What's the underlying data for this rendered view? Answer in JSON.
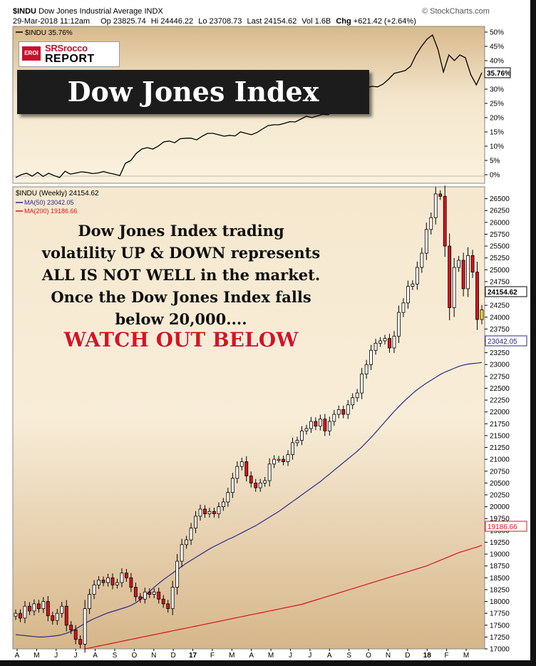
{
  "header": {
    "symbol": "$INDU",
    "name": "Dow Jones Industrial Average",
    "exchange": "INDX",
    "date": "29-Mar-2018 11:12am",
    "op_label": "Op",
    "op": "23825.74",
    "hi_label": "Hi",
    "hi": "24446.22",
    "lo_label": "Lo",
    "lo": "23708.73",
    "last_label": "Last",
    "last": "24154.62",
    "vol_label": "Vol",
    "vol": "1.6B",
    "chg_label": "Chg",
    "chg": "+621.42 (+2.64%)",
    "credit": "© StockCharts.com"
  },
  "logo": {
    "badge": "EROI",
    "line1": "SRSrocco",
    "line2": "REPORT"
  },
  "banner": {
    "title": "Dow Jones Index"
  },
  "annotation": {
    "lines": [
      "Dow Jones Index trading",
      "volatility UP & DOWN represents",
      "ALL IS NOT WELL in the market.",
      "Once the Dow Jones Index falls",
      "below 20,000...."
    ],
    "warning": "WATCH OUT BELOW"
  },
  "colors": {
    "panel_bg": "#f2e3c8",
    "up": "#ffffff",
    "down": "#d9141b",
    "ma50": "#2a2a8a",
    "ma200": "#d9141b",
    "perf_line": "#000000",
    "last_candle": "#f2e13a",
    "frame": "#111111"
  },
  "chart_data": [
    {
      "type": "line",
      "legend": "$INDU 35.76%",
      "last_label": "35.76%",
      "ylim": [
        -3,
        52
      ],
      "yticks": [
        "0%",
        "5%",
        "10%",
        "15%",
        "20%",
        "25%",
        "30%",
        "35%",
        "40%",
        "45%",
        "50%"
      ],
      "ytick_values": [
        0,
        5,
        10,
        15,
        20,
        25,
        30,
        35,
        40,
        45,
        50
      ],
      "grid": false,
      "values": [
        -1.0,
        0.0,
        0.5,
        -0.5,
        0.8,
        -0.6,
        0.5,
        -0.3,
        -1.0,
        1.2,
        0.2,
        0.6,
        1.0,
        0.8,
        0.4,
        0.6,
        1.1,
        0.6,
        0.2,
        -0.3,
        4.0,
        5.0,
        7.5,
        9.0,
        9.5,
        9.0,
        10.0,
        11.5,
        11.8,
        11.2,
        12.6,
        12.8,
        12.8,
        12.2,
        13.5,
        14.5,
        14.5,
        14.0,
        13.5,
        13.8,
        13.6,
        15.0,
        14.5,
        14.0,
        14.8,
        16.0,
        17.2,
        17.5,
        17.5,
        18.0,
        18.6,
        18.5,
        19.5,
        20.5,
        20.0,
        20.6,
        21.2,
        21.0,
        23.0,
        25.0,
        26.0,
        26.5,
        27.0,
        28.5,
        30.5,
        31.0,
        30.8,
        31.8,
        33.5,
        35.5,
        36.0,
        36.5,
        38.0,
        42.0,
        45.0,
        47.5,
        49.0,
        44.0,
        36.0,
        42.0,
        40.0,
        42.0,
        41.0,
        35.0,
        31.5,
        35.76
      ]
    },
    {
      "type": "candlestick",
      "legend": [
        "$INDU (Weekly) 24154.62",
        "MA(50) 23042.05",
        "MA(200) 19186.66"
      ],
      "last_labels": [
        "24154.62",
        "23042.05",
        "19186.66"
      ],
      "ylim": [
        17000,
        26750
      ],
      "yticks": [
        "17000",
        "17250",
        "17500",
        "17750",
        "18000",
        "18250",
        "18500",
        "18750",
        "19000",
        "19250",
        "19500",
        "19750",
        "20000",
        "20250",
        "20500",
        "20750",
        "21000",
        "21250",
        "21500",
        "21750",
        "22000",
        "22250",
        "22500",
        "22750",
        "23000",
        "23250",
        "23500",
        "23750",
        "24000",
        "24250",
        "24500",
        "24750",
        "25000",
        "25250",
        "25500",
        "25750",
        "26000",
        "26250",
        "26500"
      ],
      "ytick_values": [
        17000,
        17250,
        17500,
        17750,
        18000,
        18250,
        18500,
        18750,
        19000,
        19250,
        19500,
        19750,
        20000,
        20250,
        20500,
        20750,
        21000,
        21250,
        21500,
        21750,
        22000,
        22250,
        22500,
        22750,
        23000,
        23250,
        23500,
        23750,
        24000,
        24250,
        24500,
        24750,
        25000,
        25250,
        25500,
        25750,
        26000,
        26250,
        26500
      ],
      "xticks": [
        "A",
        "M",
        "J",
        "J",
        "A",
        "S",
        "O",
        "N",
        "D",
        "17",
        "F",
        "M",
        "A",
        "M",
        "J",
        "J",
        "A",
        "S",
        "O",
        "N",
        "D",
        "18",
        "F",
        "M"
      ],
      "grid": false,
      "close": [
        17750,
        17650,
        17900,
        17800,
        17950,
        17850,
        18000,
        17700,
        17600,
        17750,
        17900,
        17500,
        17400,
        17200,
        17100,
        17850,
        18150,
        18350,
        18450,
        18400,
        18500,
        18350,
        18400,
        18600,
        18500,
        18300,
        18100,
        18050,
        18200,
        18150,
        18200,
        18050,
        17950,
        17850,
        18300,
        18850,
        19200,
        19300,
        19550,
        19800,
        19950,
        19850,
        19900,
        19850,
        20000,
        20100,
        20300,
        20600,
        20850,
        20950,
        20650,
        20500,
        20400,
        20500,
        20550,
        20900,
        21000,
        21000,
        20950,
        21100,
        21350,
        21400,
        21600,
        21650,
        21800,
        21700,
        21850,
        21600,
        21800,
        21950,
        22050,
        21950,
        22150,
        22300,
        22400,
        22800,
        23000,
        23300,
        23450,
        23500,
        23550,
        23350,
        23600,
        24100,
        24300,
        24650,
        24700,
        25050,
        25350,
        25850,
        26100,
        26600,
        26550,
        25500,
        24200,
        25050,
        25200,
        24600,
        25300,
        24950,
        23950,
        24154.62
      ],
      "ma50": [
        17300,
        17290,
        17280,
        17270,
        17260,
        17250,
        17250,
        17260,
        17270,
        17280,
        17300,
        17330,
        17370,
        17420,
        17480,
        17540,
        17590,
        17640,
        17680,
        17720,
        17760,
        17790,
        17820,
        17850,
        17880,
        17920,
        17970,
        18040,
        18120,
        18210,
        18300,
        18380,
        18460,
        18530,
        18600,
        18670,
        18740,
        18810,
        18870,
        18930,
        18990,
        19050,
        19110,
        19160,
        19210,
        19260,
        19310,
        19350,
        19400,
        19450,
        19500,
        19550,
        19600,
        19660,
        19720,
        19780,
        19840,
        19900,
        19970,
        20040,
        20110,
        20180,
        20250,
        20320,
        20390,
        20460,
        20530,
        20610,
        20690,
        20770,
        20850,
        20930,
        21010,
        21090,
        21170,
        21260,
        21360,
        21460,
        21570,
        21680,
        21790,
        21900,
        22010,
        22110,
        22210,
        22300,
        22390,
        22470,
        22540,
        22610,
        22670,
        22730,
        22790,
        22840,
        22880,
        22920,
        22960,
        22990,
        23010,
        23020,
        23030,
        23042.05
      ],
      "ma200": [
        16700,
        16720,
        16740,
        16760,
        16780,
        16800,
        16820,
        16840,
        16860,
        16880,
        16900,
        16920,
        16940,
        16960,
        16980,
        17000,
        17020,
        17040,
        17060,
        17080,
        17100,
        17120,
        17140,
        17160,
        17180,
        17200,
        17220,
        17240,
        17260,
        17280,
        17300,
        17320,
        17340,
        17360,
        17380,
        17400,
        17420,
        17440,
        17460,
        17480,
        17500,
        17520,
        17540,
        17560,
        17580,
        17600,
        17620,
        17640,
        17660,
        17680,
        17700,
        17720,
        17740,
        17760,
        17780,
        17800,
        17820,
        17840,
        17860,
        17880,
        17900,
        17920,
        17940,
        17970,
        18000,
        18030,
        18060,
        18090,
        18120,
        18150,
        18180,
        18210,
        18240,
        18270,
        18300,
        18330,
        18360,
        18390,
        18420,
        18450,
        18480,
        18510,
        18540,
        18570,
        18600,
        18630,
        18660,
        18690,
        18720,
        18750,
        18790,
        18830,
        18870,
        18910,
        18950,
        18990,
        19030,
        19060,
        19090,
        19120,
        19150,
        19186.66
      ]
    }
  ]
}
